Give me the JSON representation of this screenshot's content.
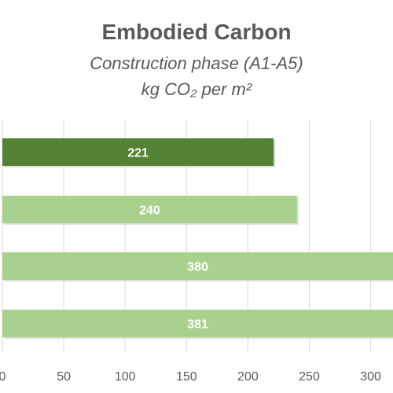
{
  "chart_data": {
    "type": "bar",
    "orientation": "horizontal",
    "title": "Embodied Carbon",
    "subtitle_line1": "Construction phase (A1-A5)",
    "subtitle_line2": "kg CO₂ per m²",
    "values": [
      221,
      240,
      380,
      381
    ],
    "data_labels": [
      "221",
      "240",
      "380",
      "381"
    ],
    "bar_colors": [
      "#548235",
      "#a9d18e",
      "#a9d18e",
      "#a9d18e"
    ],
    "xlim": [
      0,
      300
    ],
    "x_ticks": [
      0,
      50,
      100,
      150,
      200,
      250,
      300
    ],
    "x_tick_labels": [
      "0",
      "50",
      "100",
      "150",
      "200",
      "250",
      "300"
    ],
    "grid": true,
    "legend": "none"
  },
  "colors": {
    "text": "#595959",
    "grid": "#d9d9d9",
    "bar_label": "#ffffff",
    "highlight_bar": "#548235",
    "bar": "#a9d18e"
  }
}
